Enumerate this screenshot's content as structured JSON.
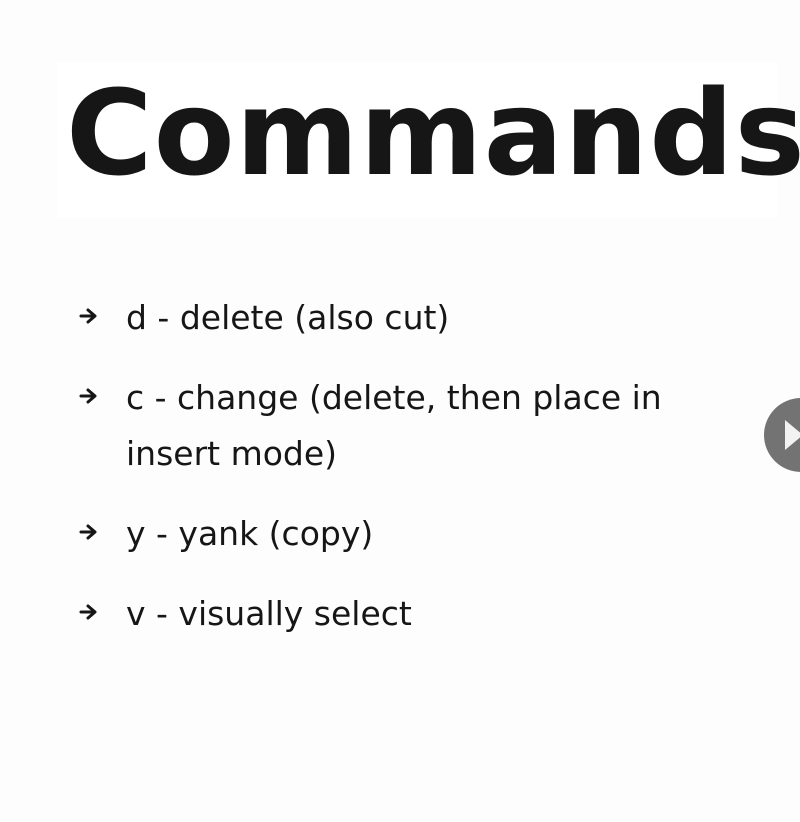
{
  "slide": {
    "title": "Commands",
    "bullets": [
      {
        "text": "d - delete (also cut)",
        "icon": "arrow-right-icon"
      },
      {
        "text": "c - change (delete, then place in insert mode)",
        "icon": "arrow-right-icon"
      },
      {
        "text": "y - yank (copy)",
        "icon": "arrow-right-icon"
      },
      {
        "text": "v - visually select",
        "icon": "arrow-right-icon"
      }
    ]
  },
  "controls": {
    "play_icon": "play-icon"
  },
  "colors": {
    "background": "#fdfdfd",
    "text": "#161616",
    "play_button": "#737373"
  }
}
